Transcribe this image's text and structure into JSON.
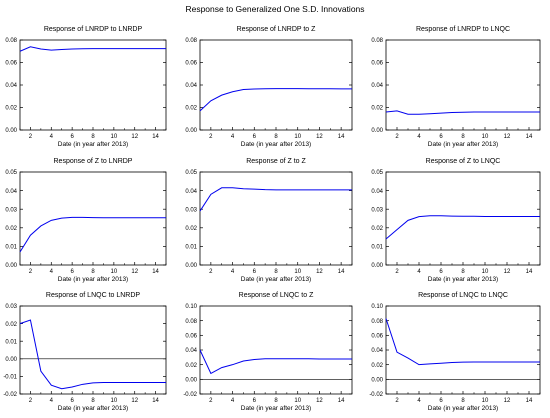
{
  "figure": {
    "title": "Response to Generalized One S.D. Innovations"
  },
  "colors": {
    "line": "#0000ee",
    "axis": "#000000",
    "zero_line": "#000000",
    "background": "#ffffff"
  },
  "chart_data": [
    {
      "type": "line",
      "title": "Response of LNRDP to LNRDP",
      "xlabel": "Date (in year after 2013)",
      "ylabel": "",
      "xlim": [
        1,
        15
      ],
      "ylim": [
        0.0,
        0.08
      ],
      "x_ticks": [
        2,
        4,
        6,
        8,
        10,
        12,
        14
      ],
      "y_ticks": [
        "0.00",
        "0.02",
        "0.04",
        "0.06",
        "0.08"
      ],
      "zero_line": false,
      "grid": false,
      "series": [
        {
          "x": [
            1,
            2,
            3,
            4,
            5,
            6,
            7,
            8,
            9,
            10,
            11,
            12,
            13,
            14,
            15
          ],
          "values": [
            0.07,
            0.074,
            0.072,
            0.071,
            0.0715,
            0.072,
            0.0722,
            0.0723,
            0.0723,
            0.0723,
            0.0723,
            0.0723,
            0.0723,
            0.0723,
            0.0723
          ]
        }
      ]
    },
    {
      "type": "line",
      "title": "Response of LNRDP to Z",
      "xlabel": "Date (in year after 2013)",
      "ylabel": "",
      "xlim": [
        1,
        15
      ],
      "ylim": [
        0.0,
        0.08
      ],
      "x_ticks": [
        2,
        4,
        6,
        8,
        10,
        12,
        14
      ],
      "y_ticks": [
        "0.00",
        "0.02",
        "0.04",
        "0.06",
        "0.08"
      ],
      "zero_line": false,
      "grid": false,
      "series": [
        {
          "x": [
            1,
            2,
            3,
            4,
            5,
            6,
            7,
            8,
            9,
            10,
            11,
            12,
            13,
            14,
            15
          ],
          "values": [
            0.017,
            0.026,
            0.031,
            0.034,
            0.036,
            0.0365,
            0.0367,
            0.0368,
            0.0368,
            0.0368,
            0.0367,
            0.0367,
            0.0367,
            0.0366,
            0.0366
          ]
        }
      ]
    },
    {
      "type": "line",
      "title": "Response of LNRDP to LNQC",
      "xlabel": "Date (in year after 2013)",
      "ylabel": "",
      "xlim": [
        1,
        15
      ],
      "ylim": [
        0.0,
        0.08
      ],
      "x_ticks": [
        2,
        4,
        6,
        8,
        10,
        12,
        14
      ],
      "y_ticks": [
        "0.00",
        "0.02",
        "0.04",
        "0.06",
        "0.08"
      ],
      "zero_line": false,
      "grid": false,
      "series": [
        {
          "x": [
            1,
            2,
            3,
            4,
            5,
            6,
            7,
            8,
            9,
            10,
            11,
            12,
            13,
            14,
            15
          ],
          "values": [
            0.016,
            0.017,
            0.014,
            0.014,
            0.0145,
            0.015,
            0.0155,
            0.0158,
            0.016,
            0.016,
            0.016,
            0.016,
            0.016,
            0.016,
            0.016
          ]
        }
      ]
    },
    {
      "type": "line",
      "title": "Response of Z to LNRDP",
      "xlabel": "Date (in year after 2013)",
      "ylabel": "",
      "xlim": [
        1,
        15
      ],
      "ylim": [
        0.0,
        0.05
      ],
      "x_ticks": [
        2,
        4,
        6,
        8,
        10,
        12,
        14
      ],
      "y_ticks": [
        "0.00",
        "0.01",
        "0.02",
        "0.03",
        "0.04",
        "0.05"
      ],
      "zero_line": false,
      "grid": false,
      "series": [
        {
          "x": [
            1,
            2,
            3,
            4,
            5,
            6,
            7,
            8,
            9,
            10,
            11,
            12,
            13,
            14,
            15
          ],
          "values": [
            0.007,
            0.016,
            0.021,
            0.024,
            0.0252,
            0.0256,
            0.0256,
            0.0255,
            0.0254,
            0.0254,
            0.0254,
            0.0254,
            0.0254,
            0.0254,
            0.0254
          ]
        }
      ]
    },
    {
      "type": "line",
      "title": "Response of Z to Z",
      "xlabel": "Date (in year after 2013)",
      "ylabel": "",
      "xlim": [
        1,
        15
      ],
      "ylim": [
        0.0,
        0.05
      ],
      "x_ticks": [
        2,
        4,
        6,
        8,
        10,
        12,
        14
      ],
      "y_ticks": [
        "0.00",
        "0.01",
        "0.02",
        "0.03",
        "0.04",
        "0.05"
      ],
      "zero_line": false,
      "grid": false,
      "series": [
        {
          "x": [
            1,
            2,
            3,
            4,
            5,
            6,
            7,
            8,
            9,
            10,
            11,
            12,
            13,
            14,
            15
          ],
          "values": [
            0.029,
            0.038,
            0.0415,
            0.0415,
            0.041,
            0.0408,
            0.0405,
            0.0404,
            0.0404,
            0.0404,
            0.0404,
            0.0404,
            0.0404,
            0.0404,
            0.0404
          ]
        }
      ]
    },
    {
      "type": "line",
      "title": "Response of Z to LNQC",
      "xlabel": "Date (in year after 2013)",
      "ylabel": "",
      "xlim": [
        1,
        15
      ],
      "ylim": [
        0.0,
        0.05
      ],
      "x_ticks": [
        2,
        4,
        6,
        8,
        10,
        12,
        14
      ],
      "y_ticks": [
        "0.00",
        "0.01",
        "0.02",
        "0.03",
        "0.04",
        "0.05"
      ],
      "zero_line": false,
      "grid": false,
      "series": [
        {
          "x": [
            1,
            2,
            3,
            4,
            5,
            6,
            7,
            8,
            9,
            10,
            11,
            12,
            13,
            14,
            15
          ],
          "values": [
            0.014,
            0.019,
            0.024,
            0.026,
            0.0265,
            0.0265,
            0.0263,
            0.0262,
            0.0262,
            0.0261,
            0.0261,
            0.0261,
            0.0261,
            0.0261,
            0.0261
          ]
        }
      ]
    },
    {
      "type": "line",
      "title": "Response of LNQC to LNRDP",
      "xlabel": "Date (in year after 2013)",
      "ylabel": "",
      "xlim": [
        1,
        15
      ],
      "ylim": [
        -0.02,
        0.03
      ],
      "x_ticks": [
        2,
        4,
        6,
        8,
        10,
        12,
        14
      ],
      "y_ticks": [
        "-0.02",
        "-0.01",
        "0.00",
        "0.01",
        "0.02",
        "0.03"
      ],
      "zero_line": true,
      "grid": false,
      "series": [
        {
          "x": [
            1,
            2,
            3,
            4,
            5,
            6,
            7,
            8,
            9,
            10,
            11,
            12,
            13,
            14,
            15
          ],
          "values": [
            0.02,
            0.022,
            -0.007,
            -0.015,
            -0.017,
            -0.016,
            -0.0145,
            -0.0137,
            -0.0135,
            -0.0135,
            -0.0135,
            -0.0135,
            -0.0135,
            -0.0135,
            -0.0135
          ]
        }
      ]
    },
    {
      "type": "line",
      "title": "Response of LNQC to Z",
      "xlabel": "Date (in year after 2013)",
      "ylabel": "",
      "xlim": [
        1,
        15
      ],
      "ylim": [
        -0.02,
        0.1
      ],
      "x_ticks": [
        2,
        4,
        6,
        8,
        10,
        12,
        14
      ],
      "y_ticks": [
        "-0.02",
        "0.00",
        "0.02",
        "0.04",
        "0.06",
        "0.08",
        "0.10"
      ],
      "zero_line": true,
      "grid": false,
      "series": [
        {
          "x": [
            1,
            2,
            3,
            4,
            5,
            6,
            7,
            8,
            9,
            10,
            11,
            12,
            13,
            14,
            15
          ],
          "values": [
            0.04,
            0.008,
            0.016,
            0.02,
            0.025,
            0.027,
            0.028,
            0.028,
            0.028,
            0.028,
            0.028,
            0.0278,
            0.0278,
            0.0278,
            0.0278
          ]
        }
      ]
    },
    {
      "type": "line",
      "title": "Response of LNQC to LNQC",
      "xlabel": "Date (in year after 2013)",
      "ylabel": "",
      "xlim": [
        1,
        15
      ],
      "ylim": [
        -0.02,
        0.1
      ],
      "x_ticks": [
        2,
        4,
        6,
        8,
        10,
        12,
        14
      ],
      "y_ticks": [
        "-0.02",
        "0.00",
        "0.02",
        "0.04",
        "0.06",
        "0.08",
        "0.10"
      ],
      "zero_line": true,
      "grid": false,
      "series": [
        {
          "x": [
            1,
            2,
            3,
            4,
            5,
            6,
            7,
            8,
            9,
            10,
            11,
            12,
            13,
            14,
            15
          ],
          "values": [
            0.083,
            0.037,
            0.029,
            0.02,
            0.021,
            0.022,
            0.023,
            0.0235,
            0.0237,
            0.0237,
            0.0237,
            0.0237,
            0.0237,
            0.0237,
            0.0237
          ]
        }
      ]
    }
  ]
}
